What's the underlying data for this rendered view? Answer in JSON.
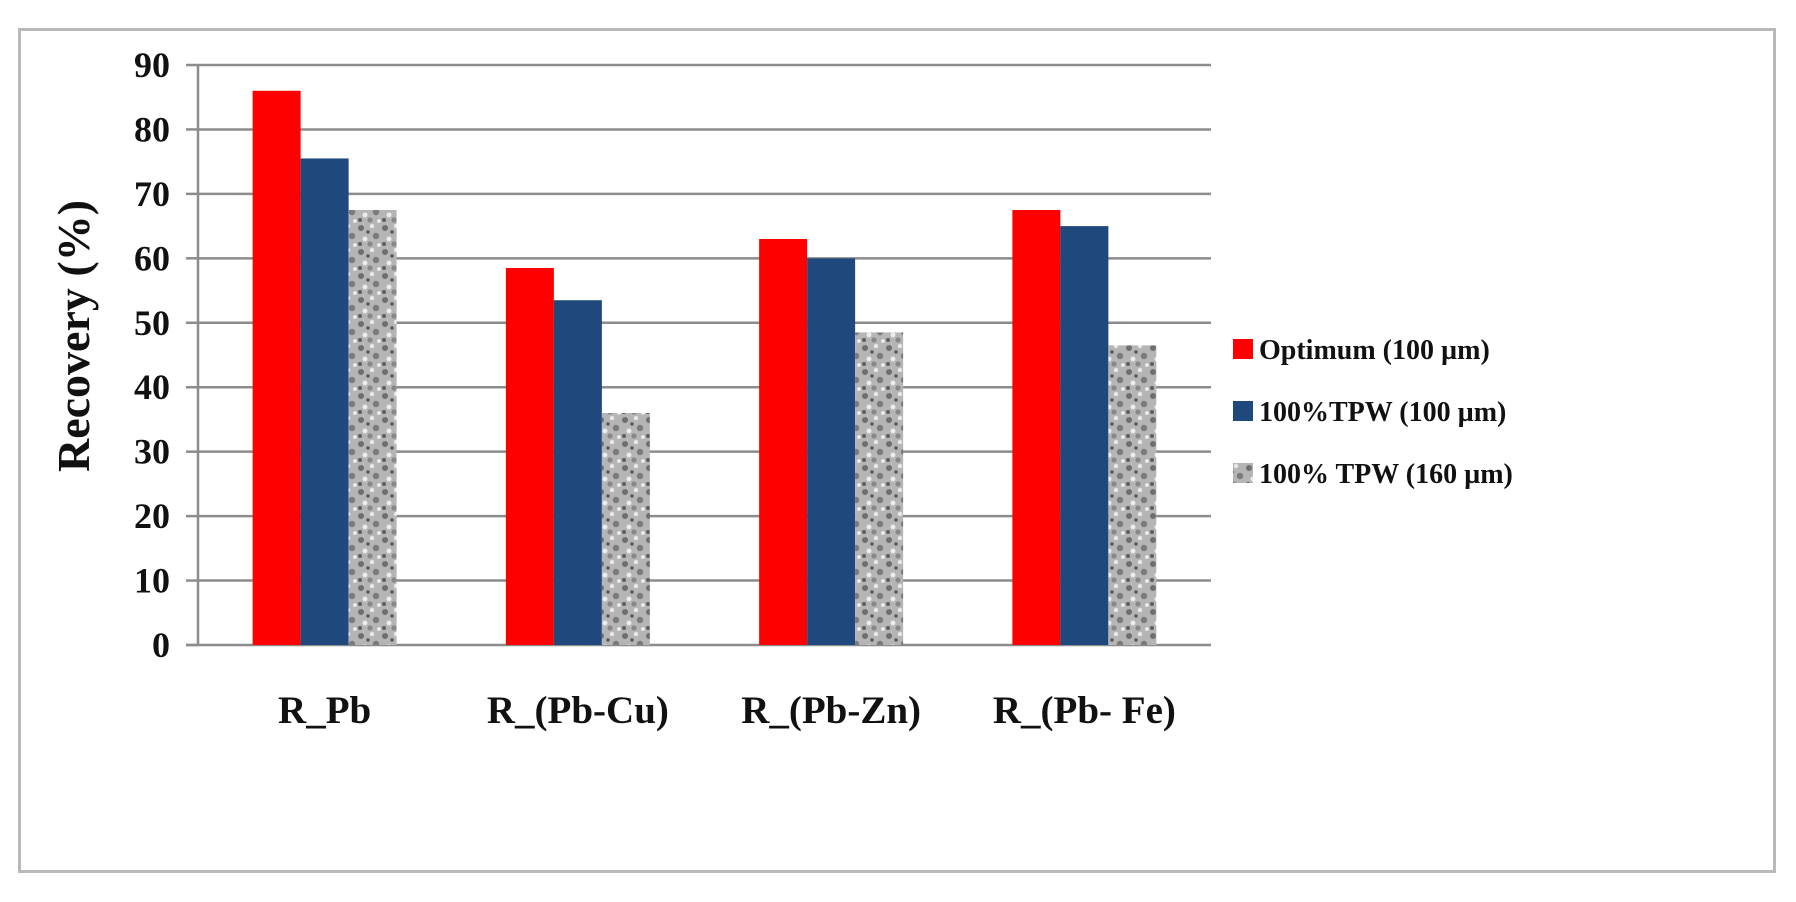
{
  "chart_data": {
    "type": "bar",
    "title": "",
    "xlabel": "",
    "ylabel": "Recovery (%)",
    "ylim": [
      0,
      90
    ],
    "yticks": [
      0,
      10,
      20,
      30,
      40,
      50,
      60,
      70,
      80,
      90
    ],
    "grid": true,
    "legend_position": "right",
    "categories": [
      "R_Pb",
      "R_(Pb-Cu)",
      "R_(Pb-Zn)",
      "R_(Pb- Fe)"
    ],
    "series": [
      {
        "name": "Optimum (100 µm)",
        "color": "#ff0000",
        "pattern": "solid",
        "values": [
          86,
          58.5,
          63,
          67.5
        ]
      },
      {
        "name": "100%TPW (100 µm)",
        "color": "#1f497d",
        "pattern": "solid",
        "values": [
          75.5,
          53.5,
          60,
          65
        ]
      },
      {
        "name": "100% TPW (160 µm)",
        "color": "#9a9a9a",
        "pattern": "granite",
        "values": [
          67.5,
          36,
          48.5,
          46.5
        ]
      }
    ]
  }
}
